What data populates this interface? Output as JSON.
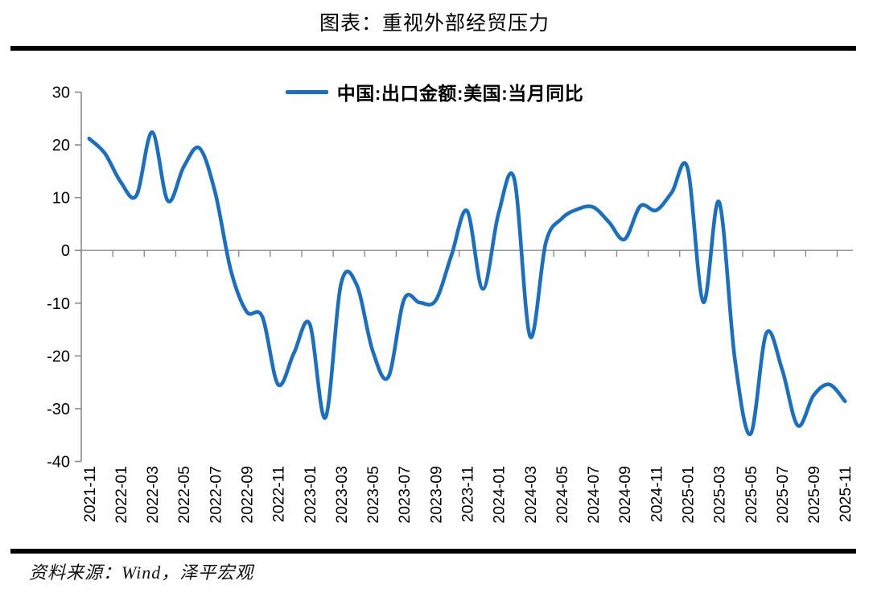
{
  "title": "图表：重视外部经贸压力",
  "source_note": "资料来源：Wind，泽平宏观",
  "colors": {
    "line": "#1b6fc1",
    "axis": "#8c8c8c",
    "text": "#000000"
  },
  "chart_data": {
    "type": "line",
    "title": "图表：重视外部经贸压力",
    "series_name": "中国:出口金额:美国:当月同比",
    "x": [
      "2021-11",
      "2021-12",
      "2022-01",
      "2022-02",
      "2022-03",
      "2022-04",
      "2022-05",
      "2022-06",
      "2022-07",
      "2022-08",
      "2022-09",
      "2022-10",
      "2022-11",
      "2022-12",
      "2023-01",
      "2023-02",
      "2023-03",
      "2023-04",
      "2023-05",
      "2023-06",
      "2023-07",
      "2023-08",
      "2023-09",
      "2023-10",
      "2023-11",
      "2023-12",
      "2024-01",
      "2024-02",
      "2024-03",
      "2024-04",
      "2024-05",
      "2024-06",
      "2024-07",
      "2024-08",
      "2024-09",
      "2024-10",
      "2024-11",
      "2024-12",
      "2025-01",
      "2025-02",
      "2025-03",
      "2025-04",
      "2025-05",
      "2025-06",
      "2025-07",
      "2025-08",
      "2025-09",
      "2025-10",
      "2025-11"
    ],
    "values": [
      21.2,
      18.4,
      13.0,
      10.4,
      22.4,
      9.4,
      15.8,
      19.4,
      11.0,
      -3.8,
      -11.6,
      -12.6,
      -25.4,
      -19.5,
      -13.9,
      -31.7,
      -6.3,
      -6.6,
      -19.0,
      -24.0,
      -9.3,
      -9.9,
      -9.5,
      -1.0,
      7.5,
      -7.3,
      7.0,
      13.5,
      -16.3,
      1.5,
      6.0,
      7.8,
      8.2,
      5.4,
      2.1,
      8.4,
      7.6,
      11.0,
      15.6,
      -9.8,
      9.2,
      -20.5,
      -34.8,
      -15.7,
      -22.5,
      -33.2,
      -27.5,
      -25.4,
      -28.6
    ],
    "ylim": [
      -40,
      30
    ],
    "yticks": [
      30,
      20,
      10,
      0,
      -10,
      -20,
      -30,
      -40
    ],
    "x_label_every": 2,
    "smooth": true,
    "grid": "zero-baseline-only",
    "legend_position": "top-center"
  }
}
